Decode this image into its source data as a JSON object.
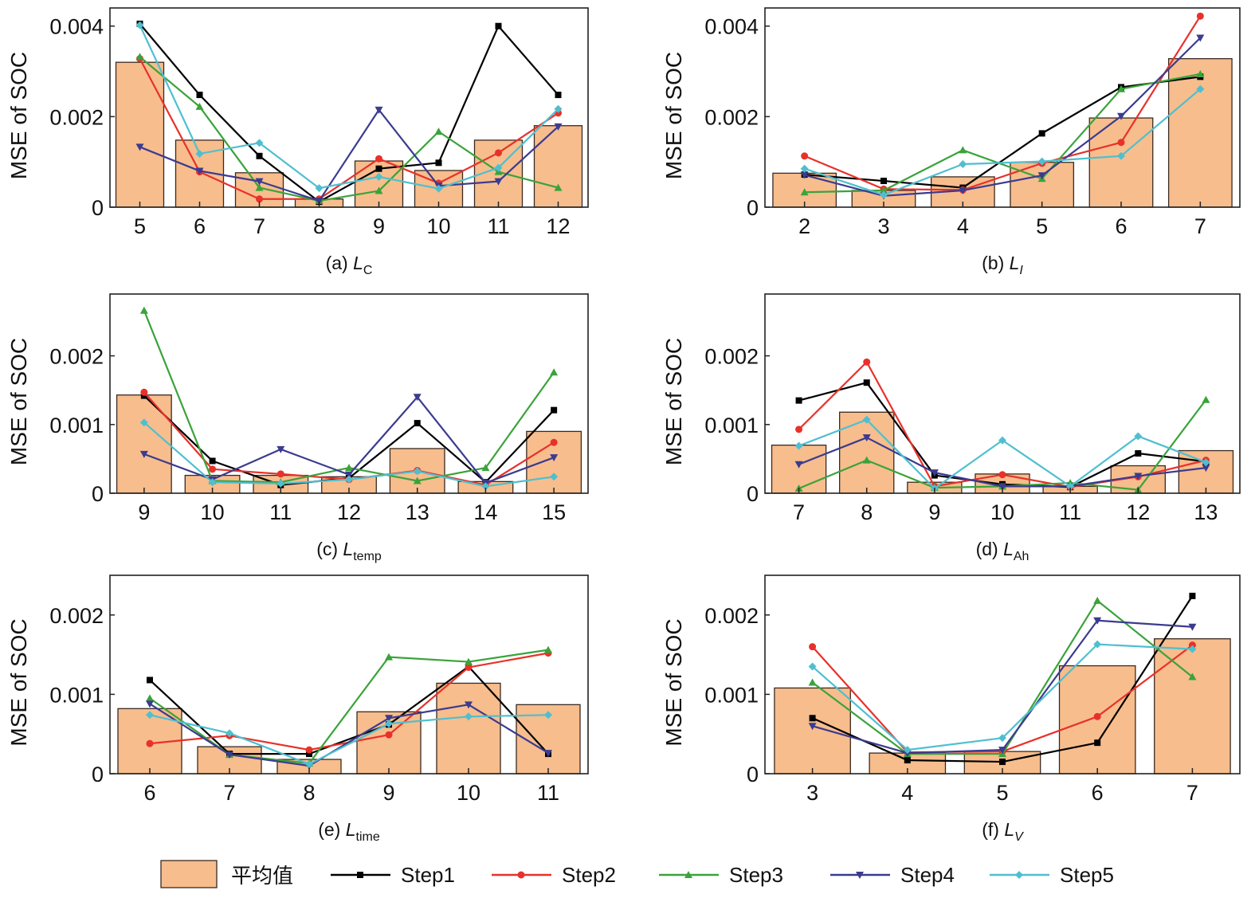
{
  "legend": {
    "bar_label": "平均值",
    "series": [
      {
        "name": "Step1",
        "color": "#000000",
        "marker": "square"
      },
      {
        "name": "Step2",
        "color": "#e8312a",
        "marker": "circle"
      },
      {
        "name": "Step3",
        "color": "#3aa33a",
        "marker": "triangle-up"
      },
      {
        "name": "Step4",
        "color": "#3b3b8f",
        "marker": "triangle-down"
      },
      {
        "name": "Step5",
        "color": "#4fbfcf",
        "marker": "diamond"
      }
    ],
    "bar_color": "#f7bd8d"
  },
  "chart_data": [
    {
      "type": "bar",
      "panel": "a",
      "caption_prefix": "(a) ",
      "caption_var": "L",
      "caption_sub": "C",
      "ylabel": "MSE of SOC",
      "xlabel": "",
      "ylim": [
        0,
        0.0044
      ],
      "yticks": [
        0,
        0.002,
        0.004
      ],
      "ytick_labels": [
        "0",
        "0.002",
        "0.004"
      ],
      "categories": [
        "5",
        "6",
        "7",
        "8",
        "9",
        "10",
        "11",
        "12"
      ],
      "mean": [
        0.0032,
        0.00148,
        0.00076,
        0.00018,
        0.00102,
        0.00081,
        0.00148,
        0.0018
      ],
      "series": [
        {
          "name": "Step1",
          "values": [
            0.00405,
            0.00248,
            0.00113,
            0.00012,
            0.00085,
            0.00098,
            0.004,
            0.00248
          ]
        },
        {
          "name": "Step2",
          "values": [
            0.00328,
            0.00078,
            0.00018,
            0.00018,
            0.00107,
            0.00053,
            0.0012,
            0.00208
          ]
        },
        {
          "name": "Step3",
          "values": [
            0.00332,
            0.00222,
            0.00043,
            0.00014,
            0.00036,
            0.00167,
            0.00078,
            0.00043
          ]
        },
        {
          "name": "Step4",
          "values": [
            0.00133,
            0.0008,
            0.00057,
            0.00014,
            0.00215,
            0.00047,
            0.00057,
            0.00178
          ]
        },
        {
          "name": "Step5",
          "values": [
            0.00402,
            0.00118,
            0.00142,
            0.00042,
            0.00067,
            0.00041,
            0.00087,
            0.00217
          ]
        }
      ]
    },
    {
      "type": "bar",
      "panel": "b",
      "caption_prefix": "(b) ",
      "caption_var": "L",
      "caption_sub": "I",
      "ylabel": "MSE of SOC",
      "xlabel": "",
      "ylim": [
        0,
        0.0044
      ],
      "yticks": [
        0,
        0.002,
        0.004
      ],
      "ytick_labels": [
        "0",
        "0.002",
        "0.004"
      ],
      "categories": [
        "2",
        "3",
        "4",
        "5",
        "6",
        "7"
      ],
      "mean": [
        0.00075,
        0.00037,
        0.00067,
        0.00099,
        0.00197,
        0.00328
      ],
      "series": [
        {
          "name": "Step1",
          "values": [
            0.00072,
            0.00058,
            0.00043,
            0.00163,
            0.00265,
            0.00288
          ]
        },
        {
          "name": "Step2",
          "values": [
            0.00113,
            0.0004,
            0.00038,
            0.00097,
            0.00143,
            0.00422
          ]
        },
        {
          "name": "Step3",
          "values": [
            0.00033,
            0.00037,
            0.00126,
            0.00063,
            0.00261,
            0.00294
          ]
        },
        {
          "name": "Step4",
          "values": [
            0.00071,
            0.00025,
            0.00037,
            0.0007,
            0.00201,
            0.00374
          ]
        },
        {
          "name": "Step5",
          "values": [
            0.00085,
            0.00027,
            0.00095,
            0.00101,
            0.00113,
            0.00261
          ]
        }
      ]
    },
    {
      "type": "bar",
      "panel": "c",
      "caption_prefix": "(c) ",
      "caption_var": "L",
      "caption_sub": "temp",
      "ylabel": "MSE of SOC",
      "xlabel": "",
      "ylim": [
        0,
        0.0029
      ],
      "yticks": [
        0,
        0.001,
        0.002
      ],
      "ytick_labels": [
        "0",
        "0.001",
        "0.002"
      ],
      "categories": [
        "9",
        "10",
        "11",
        "12",
        "13",
        "14",
        "15"
      ],
      "mean": [
        0.00143,
        0.00026,
        0.00026,
        0.00024,
        0.00065,
        0.00017,
        0.0009
      ],
      "series": [
        {
          "name": "Step1",
          "values": [
            0.00142,
            0.00047,
            0.00012,
            0.00022,
            0.00102,
            0.00016,
            0.00121
          ]
        },
        {
          "name": "Step2",
          "values": [
            0.00147,
            0.00035,
            0.00028,
            0.0002,
            0.00033,
            0.00012,
            0.00074
          ]
        },
        {
          "name": "Step3",
          "values": [
            0.00266,
            0.00018,
            0.00016,
            0.00037,
            0.00018,
            0.00037,
            0.00176
          ]
        },
        {
          "name": "Step4",
          "values": [
            0.00057,
            0.0002,
            0.00064,
            0.00027,
            0.0014,
            0.00015,
            0.00052
          ]
        },
        {
          "name": "Step5",
          "values": [
            0.00103,
            0.00016,
            0.00014,
            0.0002,
            0.00032,
            0.0001,
            0.00024
          ]
        }
      ]
    },
    {
      "type": "bar",
      "panel": "d",
      "caption_prefix": "(d) ",
      "caption_var": "L",
      "caption_sub": "Ah",
      "ylabel": "MSE of SOC",
      "xlabel": "",
      "ylim": [
        0,
        0.0029
      ],
      "yticks": [
        0,
        0.001,
        0.002
      ],
      "ytick_labels": [
        "0",
        "0.001",
        "0.002"
      ],
      "categories": [
        "7",
        "8",
        "9",
        "10",
        "11",
        "12",
        "13"
      ],
      "mean": [
        0.0007,
        0.00118,
        0.00016,
        0.00028,
        0.0001,
        0.0004,
        0.00062
      ],
      "series": [
        {
          "name": "Step1",
          "values": [
            0.00135,
            0.00161,
            0.00026,
            0.00013,
            9e-05,
            0.00058,
            0.00046
          ]
        },
        {
          "name": "Step2",
          "values": [
            0.00093,
            0.00191,
            0.0001,
            0.00027,
            9e-05,
            0.00024,
            0.00048
          ]
        },
        {
          "name": "Step3",
          "values": [
            7e-05,
            0.00048,
            8e-05,
            0.0001,
            0.00015,
            5e-05,
            0.00136
          ]
        },
        {
          "name": "Step4",
          "values": [
            0.00042,
            0.00081,
            0.0003,
            0.0001,
            0.0001,
            0.00025,
            0.00037
          ]
        },
        {
          "name": "Step5",
          "values": [
            0.00069,
            0.00107,
            7e-05,
            0.00077,
            0.0001,
            0.00083,
            0.00045
          ]
        }
      ]
    },
    {
      "type": "bar",
      "panel": "e",
      "caption_prefix": "(e) ",
      "caption_var": "L",
      "caption_sub": "time",
      "ylabel": "MSE of SOC",
      "xlabel": "",
      "ylim": [
        0,
        0.0025
      ],
      "yticks": [
        0,
        0.001,
        0.002
      ],
      "ytick_labels": [
        "0",
        "0.001",
        "0.002"
      ],
      "categories": [
        "6",
        "7",
        "8",
        "9",
        "10",
        "11"
      ],
      "mean": [
        0.00082,
        0.00034,
        0.00018,
        0.00078,
        0.00114,
        0.00087
      ],
      "series": [
        {
          "name": "Step1",
          "values": [
            0.00118,
            0.00025,
            0.00025,
            0.00062,
            0.00135,
            0.00025
          ]
        },
        {
          "name": "Step2",
          "values": [
            0.00038,
            0.00048,
            0.0003,
            0.00049,
            0.00134,
            0.00152
          ]
        },
        {
          "name": "Step3",
          "values": [
            0.00095,
            0.00024,
            0.00013,
            0.00147,
            0.00141,
            0.00156
          ]
        },
        {
          "name": "Step4",
          "values": [
            0.00088,
            0.00024,
            0.0001,
            0.0007,
            0.00087,
            0.00026
          ]
        },
        {
          "name": "Step5",
          "values": [
            0.00074,
            0.00051,
            0.00012,
            0.00063,
            0.00072,
            0.00074
          ]
        }
      ]
    },
    {
      "type": "bar",
      "panel": "f",
      "caption_prefix": "(f) ",
      "caption_var": "L",
      "caption_sub": "V",
      "ylabel": "MSE of SOC",
      "xlabel": "",
      "ylim": [
        0,
        0.0025
      ],
      "yticks": [
        0,
        0.001,
        0.002
      ],
      "ytick_labels": [
        "0",
        "0.001",
        "0.002"
      ],
      "categories": [
        "3",
        "4",
        "5",
        "6",
        "7"
      ],
      "mean": [
        0.00108,
        0.00026,
        0.00028,
        0.00136,
        0.0017
      ],
      "series": [
        {
          "name": "Step1",
          "values": [
            0.0007,
            0.00017,
            0.00015,
            0.00039,
            0.00224
          ]
        },
        {
          "name": "Step2",
          "values": [
            0.0016,
            0.00027,
            0.00028,
            0.00072,
            0.00162
          ]
        },
        {
          "name": "Step3",
          "values": [
            0.00115,
            0.00025,
            0.00025,
            0.00218,
            0.00122
          ]
        },
        {
          "name": "Step4",
          "values": [
            0.0006,
            0.00026,
            0.0003,
            0.00193,
            0.00185
          ]
        },
        {
          "name": "Step5",
          "values": [
            0.00135,
            0.0003,
            0.00045,
            0.00163,
            0.00157
          ]
        }
      ]
    }
  ]
}
